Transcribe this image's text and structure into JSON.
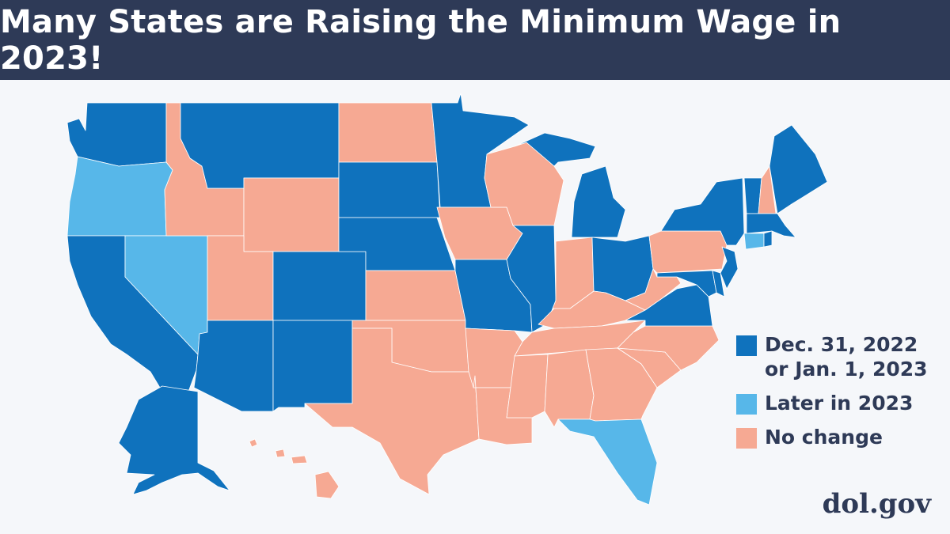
{
  "header": {
    "title": "Many States are Raising the Minimum Wage in 2023!"
  },
  "colors": {
    "early": "#0f72bd",
    "later": "#57b7e9",
    "none": "#f6a993",
    "header_bg": "#2e3a57",
    "text": "#2e3a57"
  },
  "legend": [
    {
      "key": "early",
      "label": "Dec. 31, 2022\nor Jan. 1, 2023"
    },
    {
      "key": "later",
      "label": "Later in 2023"
    },
    {
      "key": "none",
      "label": "No change"
    }
  ],
  "footer": {
    "site": "dol.gov"
  },
  "map_data": {
    "type": "choropleth",
    "region": "United States",
    "states": {
      "WA": "early",
      "OR": "later",
      "CA": "early",
      "NV": "later",
      "ID": "none",
      "MT": "early",
      "WY": "none",
      "UT": "none",
      "AZ": "early",
      "NM": "early",
      "CO": "early",
      "ND": "none",
      "SD": "early",
      "NE": "early",
      "KS": "none",
      "OK": "none",
      "TX": "none",
      "MN": "early",
      "IA": "none",
      "MO": "early",
      "AR": "none",
      "LA": "none",
      "WI": "none",
      "IL": "early",
      "MI": "early",
      "IN": "none",
      "OH": "early",
      "KY": "none",
      "TN": "none",
      "MS": "none",
      "AL": "none",
      "GA": "none",
      "FL": "later",
      "SC": "none",
      "NC": "none",
      "VA": "early",
      "WV": "none",
      "PA": "none",
      "NY": "early",
      "VT": "early",
      "NH": "none",
      "ME": "early",
      "MA": "early",
      "RI": "early",
      "CT": "later",
      "NJ": "early",
      "DE": "early",
      "MD": "early",
      "AK": "early",
      "HI": "none"
    }
  }
}
